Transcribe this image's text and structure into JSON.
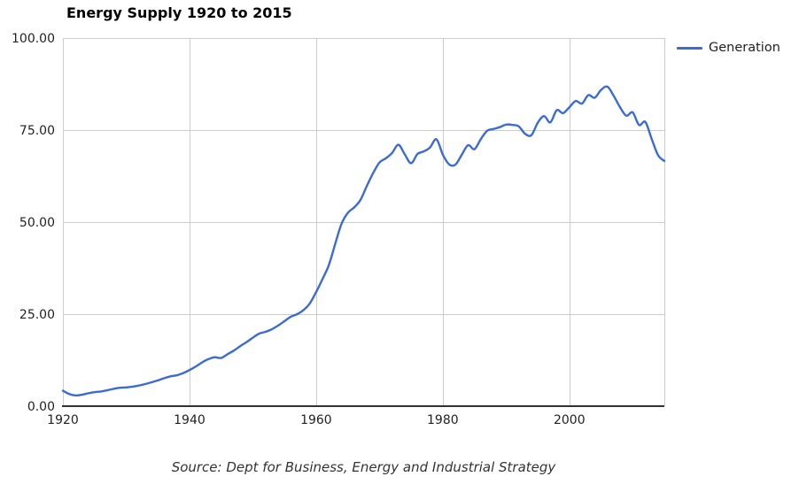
{
  "chart": {
    "title": "Energy Supply 1920 to 2015",
    "legend": {
      "label": "Generation"
    },
    "source_note": "Source: Dept for Business, Energy and Industrial Strategy"
  },
  "colors": {
    "line": "#3b6bd3",
    "grid": "#cccccc",
    "axis": "#333333",
    "tick_text": "#222222",
    "background": "#ffffff"
  },
  "chart_data": {
    "type": "line",
    "title": "Energy Supply 1920 to 2015",
    "xlabel": "",
    "ylabel": "",
    "xlim": [
      1920,
      2015
    ],
    "ylim": [
      0,
      100
    ],
    "grid": true,
    "curve": "smoothed",
    "legend_position": "top-right",
    "xticks": {
      "values": [
        1920,
        1940,
        1960,
        1980,
        2000
      ],
      "labels": [
        "1920",
        "1940",
        "1960",
        "1980",
        "2000"
      ]
    },
    "yticks": {
      "values": [
        0,
        25,
        50,
        75,
        100
      ],
      "labels": [
        "0.00",
        "25.00",
        "50.00",
        "75.00",
        "100.00"
      ]
    },
    "series": [
      {
        "name": "Generation",
        "color": "#3b6bd3",
        "x_start": 1920,
        "x_step": 1,
        "x_end": 2015,
        "values": [
          4.2,
          3.3,
          2.9,
          3.1,
          3.5,
          3.8,
          4.0,
          4.3,
          4.7,
          5.0,
          5.1,
          5.3,
          5.6,
          6.0,
          6.5,
          7.0,
          7.6,
          8.1,
          8.4,
          9.0,
          9.8,
          10.8,
          11.9,
          12.8,
          13.3,
          13.1,
          14.1,
          15.1,
          16.3,
          17.4,
          18.6,
          19.7,
          20.2,
          20.9,
          21.9,
          23.1,
          24.3,
          25.0,
          26.1,
          27.9,
          31.0,
          34.5,
          38.3,
          44.0,
          49.5,
          52.5,
          54.0,
          56.0,
          59.8,
          63.3,
          66.2,
          67.3,
          68.8,
          71.0,
          68.4,
          66.0,
          68.5,
          69.2,
          70.3,
          72.5,
          68.4,
          65.7,
          65.6,
          68.3,
          70.9,
          69.8,
          72.5,
          74.8,
          75.3,
          75.8,
          76.5,
          76.4,
          76.0,
          74.0,
          73.6,
          77.0,
          78.8,
          77.1,
          80.4,
          79.6,
          81.2,
          82.9,
          82.2,
          84.5,
          83.8,
          85.9,
          86.8,
          84.3,
          81.2,
          78.9,
          79.8,
          76.4,
          77.2,
          72.6,
          68.2,
          66.6
        ]
      }
    ]
  }
}
